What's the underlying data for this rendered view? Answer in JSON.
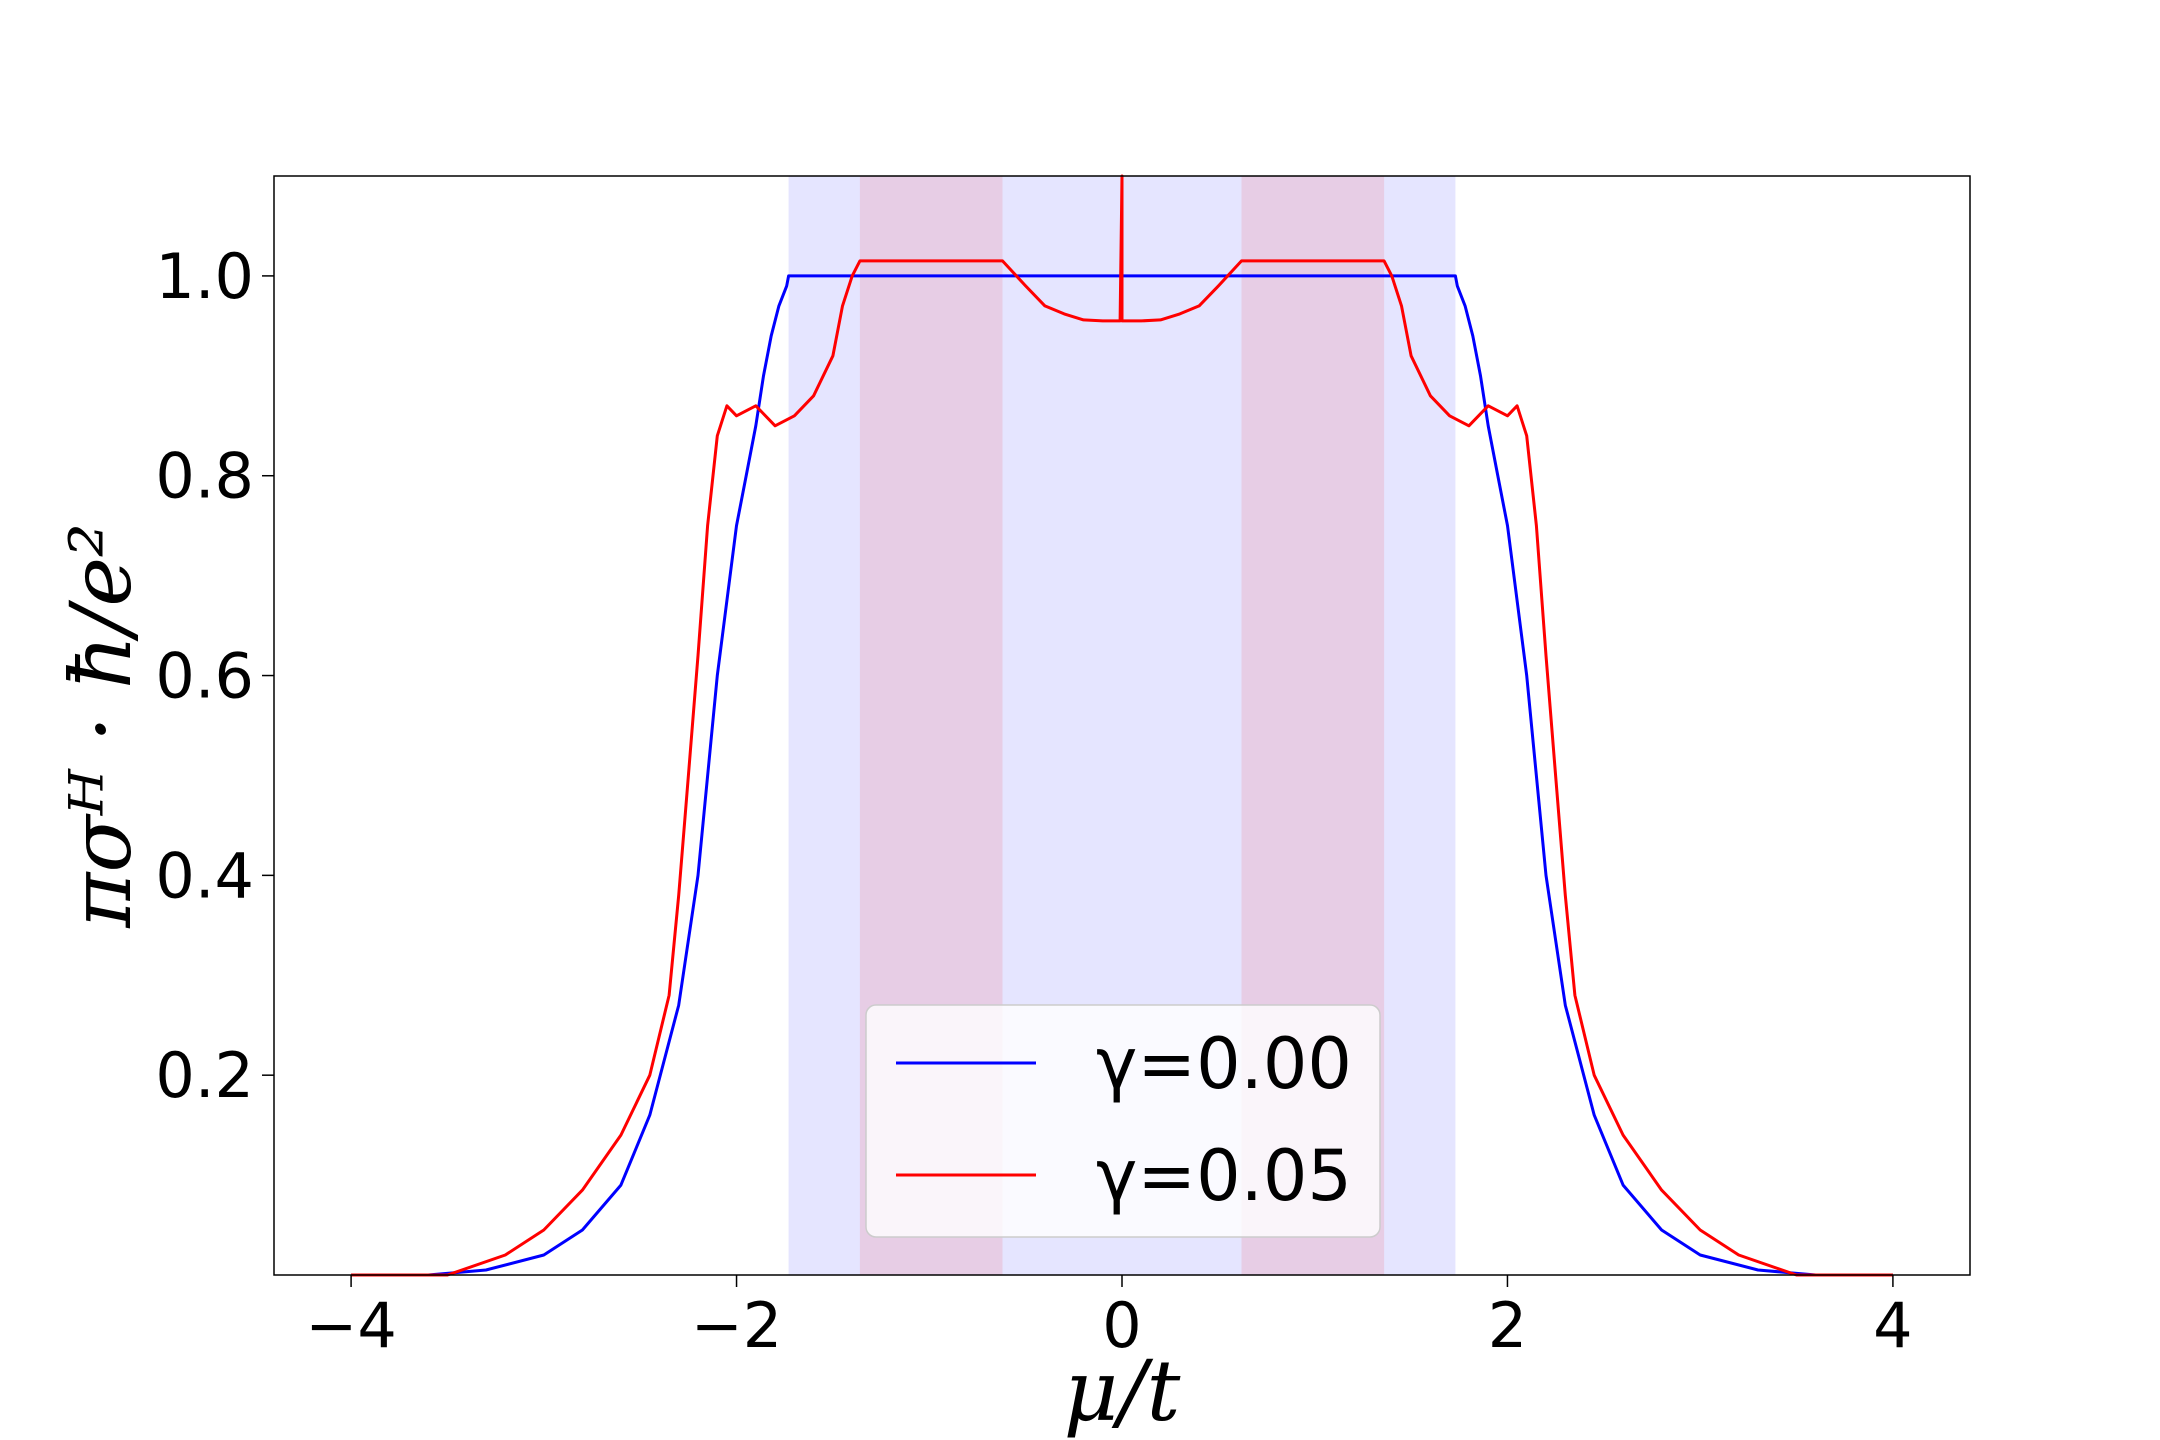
{
  "chart_data": {
    "type": "line",
    "xlabel": "μ/t",
    "ylabel": "πσᴴ · ħ/e²",
    "xlim": [
      -4.4,
      4.4
    ],
    "ylim": [
      0.0,
      1.1
    ],
    "xticks": [
      -4,
      -2,
      0,
      2,
      4
    ],
    "xtick_labels": [
      "−4",
      "−2",
      "0",
      "2",
      "4"
    ],
    "yticks": [
      0.2,
      0.4,
      0.6,
      0.8,
      1.0
    ],
    "ytick_labels": [
      "0.2",
      "0.4",
      "0.6",
      "0.8",
      "1.0"
    ],
    "grid": false,
    "legend_position": "lower-center",
    "shaded_regions": [
      {
        "x": [
          -1.73,
          1.73
        ],
        "color": "#0000ff",
        "alpha": 0.1
      },
      {
        "x": [
          -1.36,
          -0.62
        ],
        "color": "#ff0000",
        "alpha": 0.1
      },
      {
        "x": [
          0.62,
          1.36
        ],
        "color": "#ff0000",
        "alpha": 0.1
      }
    ],
    "series": [
      {
        "name": "γ=0.00",
        "color": "#0000ff",
        "x": [
          -4.0,
          -3.6,
          -3.3,
          -3.0,
          -2.8,
          -2.6,
          -2.45,
          -2.3,
          -2.2,
          -2.1,
          -2.0,
          -1.95,
          -1.9,
          -1.86,
          -1.82,
          -1.78,
          -1.74,
          -1.73,
          0.0,
          1.73,
          1.74,
          1.78,
          1.82,
          1.86,
          1.9,
          1.95,
          2.0,
          2.1,
          2.2,
          2.3,
          2.45,
          2.6,
          2.8,
          3.0,
          3.3,
          3.6,
          4.0
        ],
        "y": [
          0.0,
          0.0,
          0.005,
          0.02,
          0.045,
          0.09,
          0.16,
          0.27,
          0.4,
          0.6,
          0.75,
          0.8,
          0.85,
          0.9,
          0.94,
          0.97,
          0.99,
          1.0,
          1.0,
          1.0,
          0.99,
          0.97,
          0.94,
          0.9,
          0.85,
          0.8,
          0.75,
          0.6,
          0.4,
          0.27,
          0.16,
          0.09,
          0.045,
          0.02,
          0.005,
          0.0,
          0.0
        ]
      },
      {
        "name": "γ=0.05",
        "color": "#ff0000",
        "x": [
          -4.0,
          -3.5,
          -3.2,
          -3.0,
          -2.8,
          -2.6,
          -2.45,
          -2.35,
          -2.3,
          -2.25,
          -2.2,
          -2.15,
          -2.1,
          -2.05,
          -2.0,
          -1.9,
          -1.8,
          -1.7,
          -1.6,
          -1.5,
          -1.45,
          -1.4,
          -1.36,
          -0.62,
          -0.5,
          -0.4,
          -0.3,
          -0.2,
          -0.1,
          -0.01,
          0.0,
          0.0,
          0.01,
          0.1,
          0.2,
          0.3,
          0.4,
          0.5,
          0.62,
          1.36,
          1.4,
          1.45,
          1.5,
          1.6,
          1.7,
          1.8,
          1.9,
          2.0,
          2.05,
          2.1,
          2.15,
          2.2,
          2.25,
          2.3,
          2.35,
          2.45,
          2.6,
          2.8,
          3.0,
          3.2,
          3.5,
          4.0
        ],
        "y": [
          0.0,
          0.0,
          0.02,
          0.045,
          0.085,
          0.14,
          0.2,
          0.28,
          0.38,
          0.5,
          0.62,
          0.75,
          0.84,
          0.87,
          0.86,
          0.87,
          0.85,
          0.86,
          0.88,
          0.92,
          0.97,
          1.0,
          1.015,
          1.015,
          0.99,
          0.97,
          0.962,
          0.956,
          0.955,
          0.955,
          1.1,
          0.955,
          0.955,
          0.955,
          0.956,
          0.962,
          0.97,
          0.99,
          1.015,
          1.015,
          1.0,
          0.97,
          0.92,
          0.88,
          0.86,
          0.85,
          0.87,
          0.86,
          0.87,
          0.84,
          0.75,
          0.62,
          0.5,
          0.38,
          0.28,
          0.2,
          0.14,
          0.085,
          0.045,
          0.02,
          0.0,
          0.0
        ]
      }
    ]
  }
}
